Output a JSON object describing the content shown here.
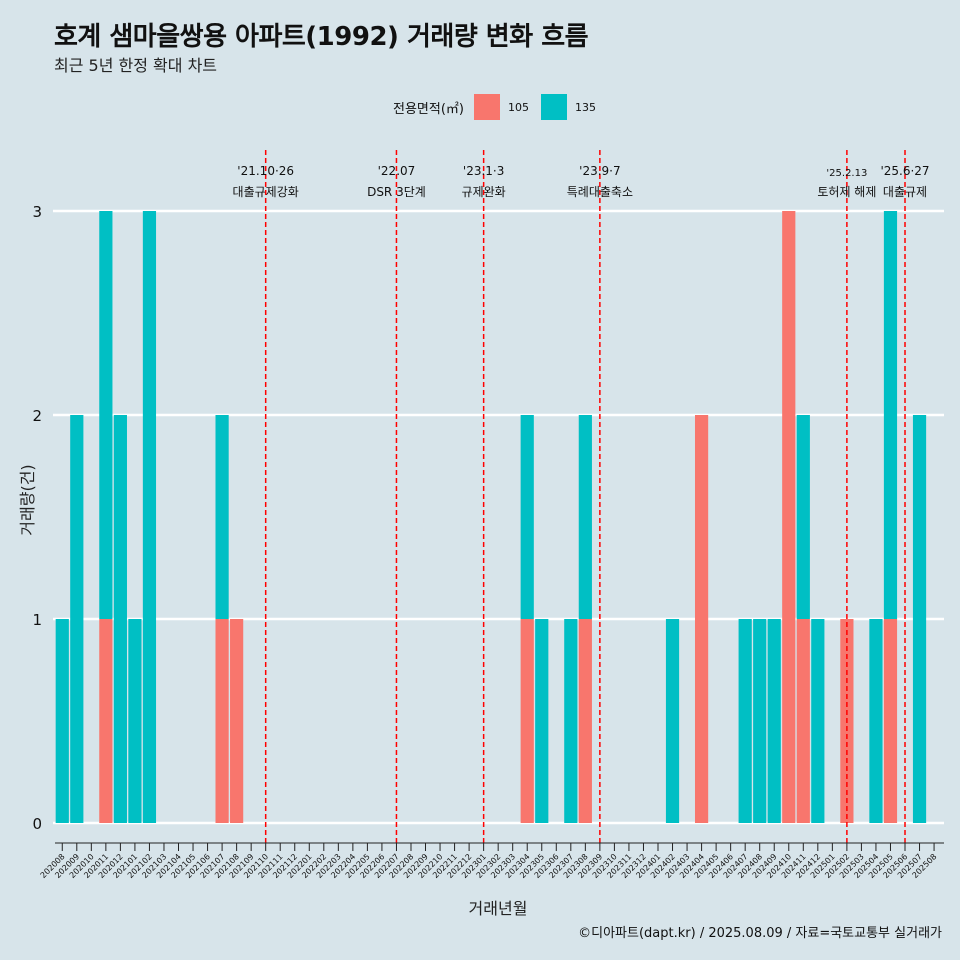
{
  "title": "호계 샘마을쌍용 아파트(1992) 거래량 변화 흐름",
  "subtitle": "최근 5년 한정 확대 차트",
  "footer": "©디아파트(dapt.kr) / 2025.08.09 / 자료=국토교통부 실거래가",
  "colors": {
    "s105": "#f8766d",
    "s135": "#00bfc4",
    "vline": "#ff0000"
  },
  "chart_data": {
    "type": "bar",
    "xlabel": "거래년월",
    "ylabel": "거래량(건)",
    "ylim": [
      0,
      3
    ],
    "yticks": [
      0,
      1,
      2,
      3
    ],
    "legend": {
      "title": "전용면적(㎡)",
      "placement": "top"
    },
    "categories": [
      "202008",
      "202009",
      "202010",
      "202011",
      "202012",
      "202101",
      "202102",
      "202103",
      "202104",
      "202105",
      "202106",
      "202107",
      "202108",
      "202109",
      "202110",
      "202111",
      "202112",
      "202201",
      "202202",
      "202203",
      "202204",
      "202205",
      "202206",
      "202207",
      "202208",
      "202209",
      "202210",
      "202211",
      "202212",
      "202301",
      "202302",
      "202303",
      "202304",
      "202305",
      "202306",
      "202307",
      "202308",
      "202309",
      "202310",
      "202311",
      "202312",
      "202401",
      "202402",
      "202403",
      "202404",
      "202405",
      "202406",
      "202407",
      "202408",
      "202409",
      "202410",
      "202411",
      "202412",
      "202501",
      "202502",
      "202503",
      "202504",
      "202505",
      "202506",
      "202507",
      "202508"
    ],
    "series": [
      {
        "name": "105",
        "values": [
          0,
          0,
          0,
          1,
          0,
          0,
          0,
          0,
          0,
          0,
          0,
          1,
          1,
          0,
          0,
          0,
          0,
          0,
          0,
          0,
          0,
          0,
          0,
          0,
          0,
          0,
          0,
          0,
          0,
          0,
          0,
          0,
          1,
          0,
          0,
          0,
          1,
          0,
          0,
          0,
          0,
          0,
          0,
          0,
          2,
          0,
          0,
          0,
          0,
          0,
          3,
          1,
          0,
          0,
          1,
          0,
          0,
          1,
          0,
          0,
          0
        ]
      },
      {
        "name": "135",
        "values": [
          1,
          2,
          0,
          2,
          2,
          1,
          3,
          0,
          0,
          0,
          0,
          1,
          0,
          0,
          0,
          0,
          0,
          0,
          0,
          0,
          0,
          0,
          0,
          0,
          0,
          0,
          0,
          0,
          0,
          0,
          0,
          0,
          1,
          1,
          0,
          1,
          1,
          0,
          0,
          0,
          0,
          0,
          1,
          0,
          0,
          0,
          0,
          1,
          1,
          1,
          0,
          1,
          1,
          0,
          0,
          0,
          1,
          2,
          0,
          2,
          0
        ]
      }
    ],
    "annotations": [
      {
        "at": "202110",
        "date": "'21.10·26",
        "label": "대출규제강화"
      },
      {
        "at": "202207",
        "date": "'22.07",
        "label": "DSR 3단계"
      },
      {
        "at": "202301",
        "date": "'23.1·3",
        "label": "규제완화"
      },
      {
        "at": "202309",
        "date": "'23.9·7",
        "label": "특례대출축소"
      },
      {
        "at": "202502",
        "date": "'25.2.13",
        "label": "토허제 해제"
      },
      {
        "at": "202506",
        "date": "'25.6·27",
        "label": "대출규제"
      }
    ]
  }
}
